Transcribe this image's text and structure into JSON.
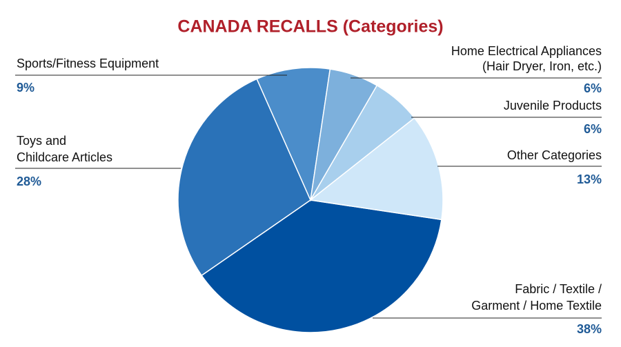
{
  "chart_data": {
    "type": "pie",
    "title": "CANADA RECALLS (Categories)",
    "categories": [
      [
        "Fabric / Textile /",
        "Garment / Home Textile"
      ],
      [
        "Toys and",
        "Childcare Articles"
      ],
      [
        "Sports/Fitness Equipment"
      ],
      [
        "Home Electrical Appliances",
        "(Hair Dryer, Iron, etc.)"
      ],
      [
        "Juvenile Products"
      ],
      [
        "Other Categories"
      ]
    ],
    "values": [
      38,
      28,
      9,
      6,
      6,
      13
    ],
    "value_labels": [
      "38%",
      "28%",
      "9%",
      "6%",
      "6%",
      "13%"
    ],
    "colors": [
      "#0050a0",
      "#2a72b8",
      "#4b8dca",
      "#7db0dc",
      "#a8cfed",
      "#cfe7f9"
    ]
  }
}
